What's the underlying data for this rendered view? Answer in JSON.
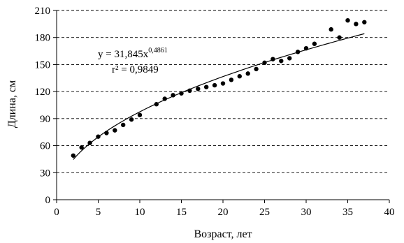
{
  "chart_data": {
    "type": "scatter",
    "xlabel": "Возраст, лет",
    "ylabel": "Длина, см",
    "xlim": [
      0,
      40
    ],
    "ylim": [
      0,
      210
    ],
    "x_ticks": [
      "0",
      "5",
      "10",
      "15",
      "20",
      "25",
      "30",
      "35",
      "40"
    ],
    "y_ticks": [
      "0",
      "30",
      "60",
      "90",
      "120",
      "150",
      "180",
      "210"
    ],
    "grid": "horizontal dashed",
    "marker_color": "#000000",
    "series": [
      {
        "points": [
          [
            2,
            49
          ],
          [
            3,
            58
          ],
          [
            4,
            63
          ],
          [
            5,
            70
          ],
          [
            6,
            74
          ],
          [
            7,
            77
          ],
          [
            8,
            83
          ],
          [
            9,
            89
          ],
          [
            10,
            94
          ],
          [
            12,
            106
          ],
          [
            13,
            112
          ],
          [
            14,
            116
          ],
          [
            15,
            118
          ],
          [
            16,
            121
          ],
          [
            17,
            123
          ],
          [
            18,
            125
          ],
          [
            19,
            127
          ],
          [
            20,
            129
          ],
          [
            21,
            133
          ],
          [
            22,
            137
          ],
          [
            23,
            140
          ],
          [
            24,
            145
          ],
          [
            25,
            152
          ],
          [
            26,
            156
          ],
          [
            27,
            154
          ],
          [
            28,
            157
          ],
          [
            29,
            164
          ],
          [
            30,
            168
          ],
          [
            31,
            173
          ],
          [
            33,
            189
          ],
          [
            34,
            180
          ],
          [
            35,
            199
          ],
          [
            36,
            195
          ],
          [
            37,
            197
          ]
        ]
      }
    ],
    "trendline": {
      "type": "power",
      "a": 31.845,
      "b": 0.4861,
      "x_range": [
        2,
        37
      ],
      "equation_prefix": "y = 31,845x",
      "equation_exponent": "0,4861",
      "r2_label": "r² = 0,9849"
    }
  }
}
